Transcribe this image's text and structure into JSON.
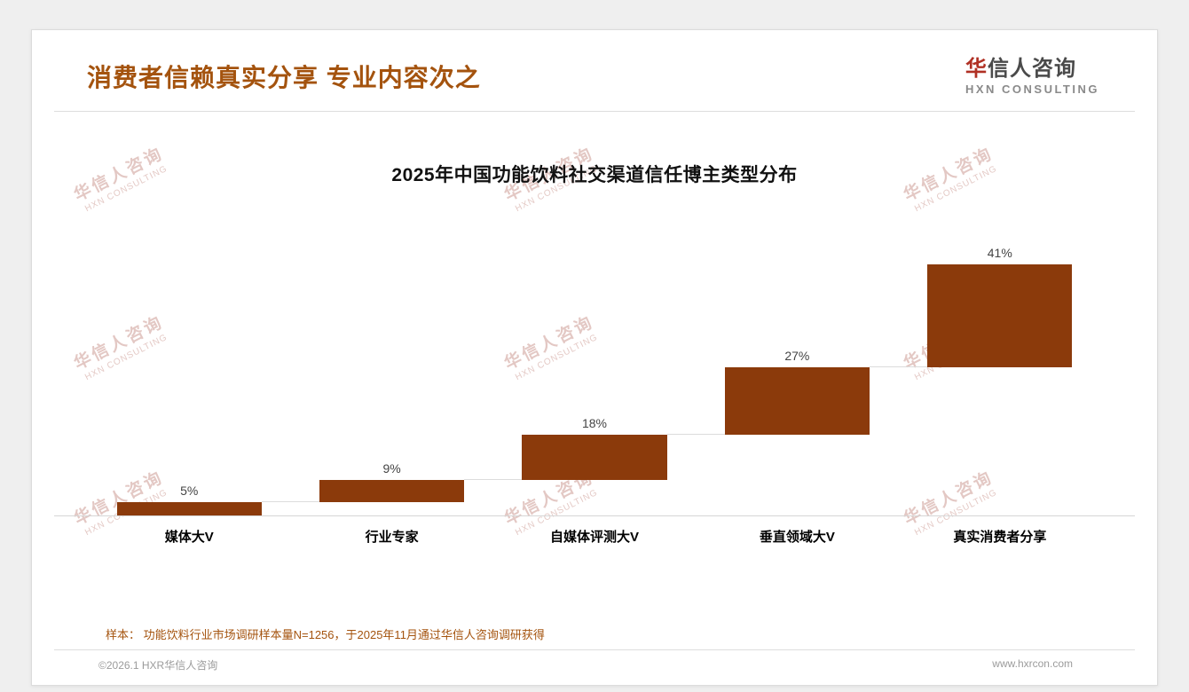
{
  "header": {
    "title": "消费者信赖真实分享 专业内容次之",
    "logo_cn_first": "华",
    "logo_cn_rest": "信人咨询",
    "logo_en": "HXN CONSULTING"
  },
  "watermark": {
    "line1": "华信人咨询",
    "line2": "HXN CONSULTING"
  },
  "chart_data": {
    "type": "bar",
    "variant": "waterfall",
    "title": "2025年中国功能饮料社交渠道信任博主类型分布",
    "categories": [
      "媒体大V",
      "行业专家",
      "自媒体评测大V",
      "垂直领域大V",
      "真实消费者分享"
    ],
    "values": [
      5,
      9,
      18,
      27,
      41
    ],
    "value_labels": [
      "5%",
      "9%",
      "18%",
      "27%",
      "41%"
    ],
    "ylim": [
      0,
      100
    ],
    "grid": false,
    "legend": false,
    "bar_color": "#8B3A0B"
  },
  "footnote": {
    "text": "样本： 功能饮料行业市场调研样本量N=1256，于2025年11月通过华信人咨询调研获得"
  },
  "footer": {
    "left": "©2026.1 HXR华信人咨询",
    "right": "www.hxrcon.com"
  },
  "colors": {
    "accent": "#A4530E",
    "bar": "#8B3A0B",
    "watermark": "#c9938b"
  }
}
